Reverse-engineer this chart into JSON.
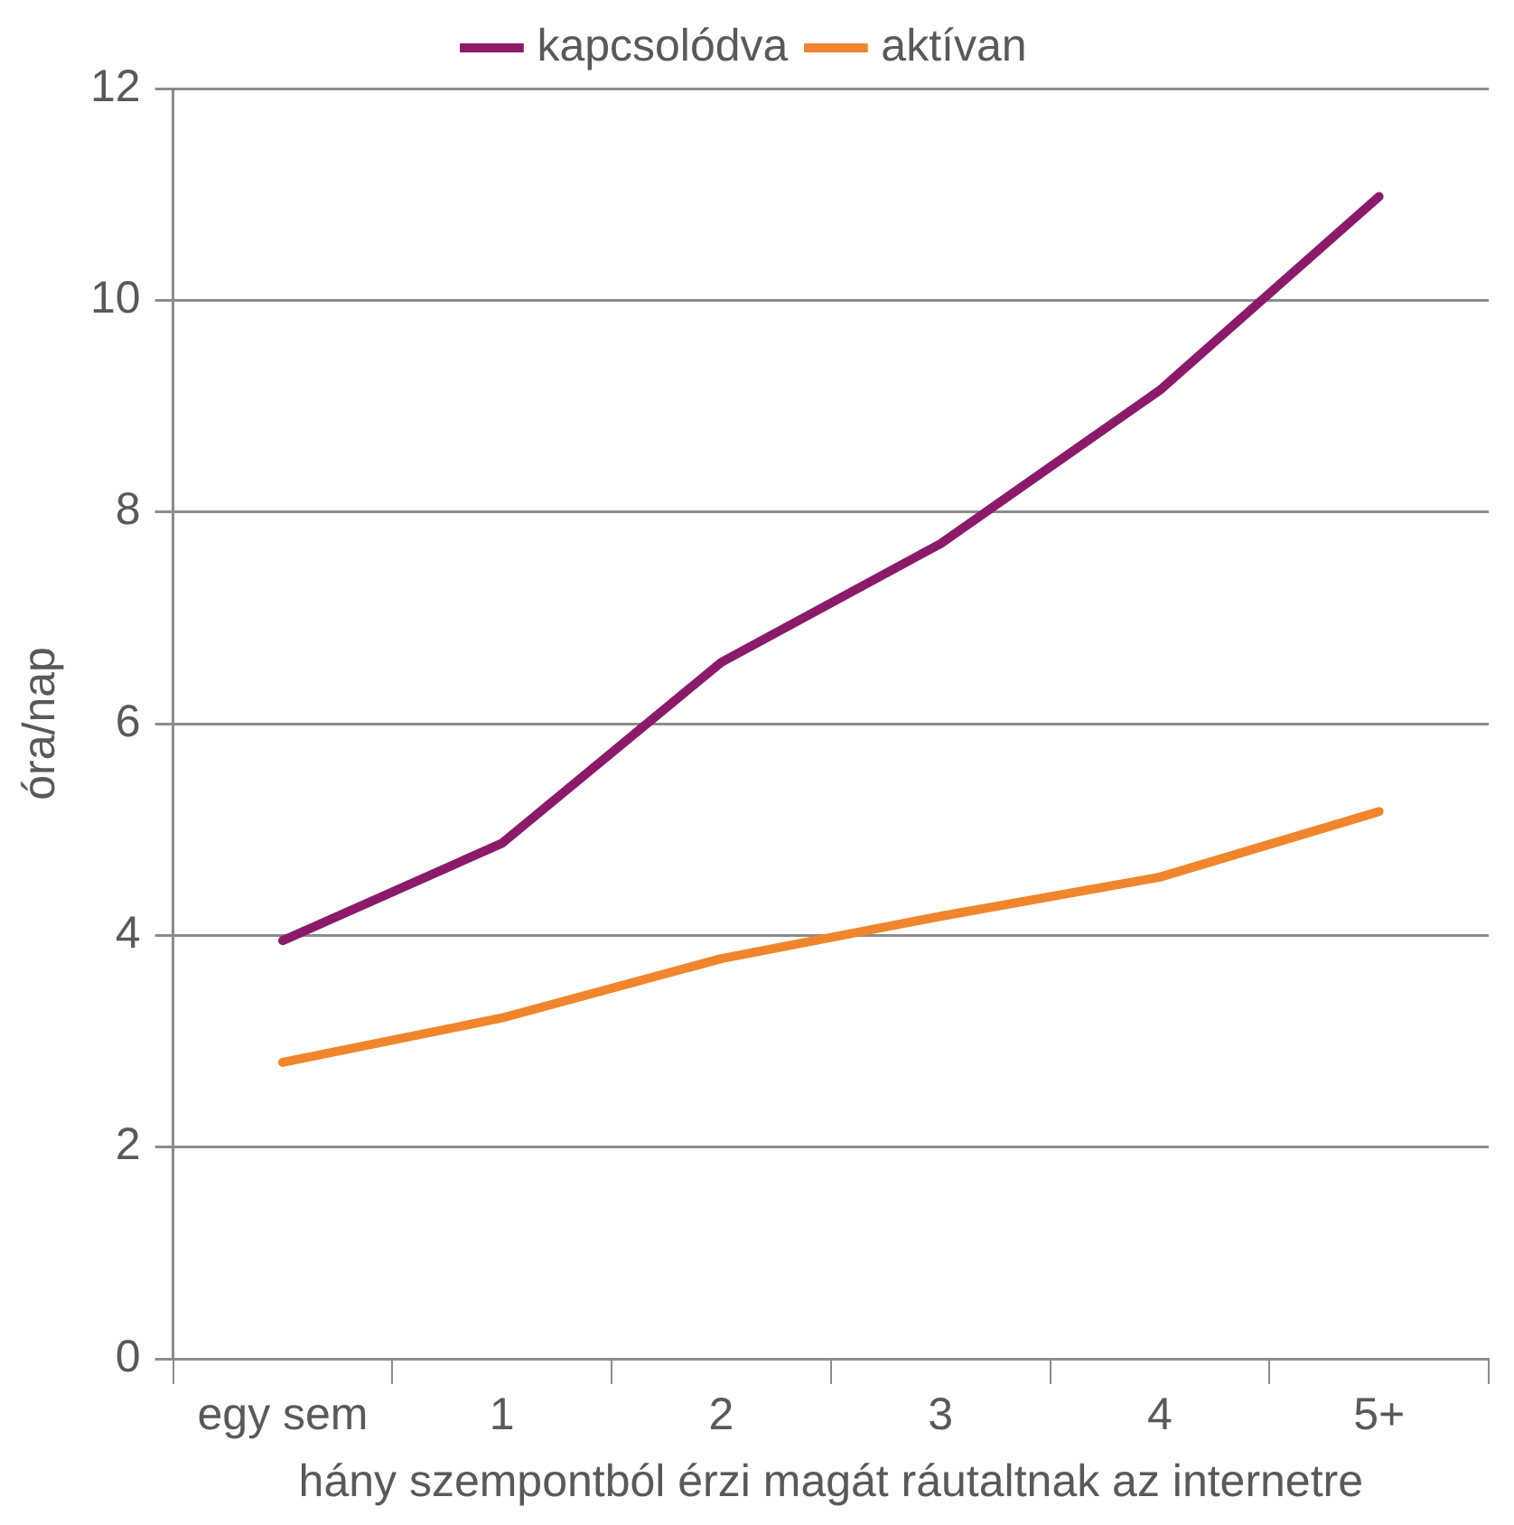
{
  "chart_data": {
    "type": "line",
    "xlabel": "hány szempontból érzi magát ráutaltnak az internetre",
    "ylabel": "óra/nap",
    "categories": [
      "egy sem",
      "1",
      "2",
      "3",
      "4",
      "5+"
    ],
    "series": [
      {
        "name": "kapcsolódva",
        "color": "#8b1a6b",
        "values": [
          3.95,
          4.87,
          6.58,
          7.7,
          9.15,
          10.98
        ]
      },
      {
        "name": "aktívan",
        "color": "#f0852d",
        "values": [
          2.8,
          3.22,
          3.78,
          4.18,
          4.55,
          5.17
        ]
      }
    ],
    "ylim": [
      0,
      12
    ],
    "yticks": [
      0,
      2,
      4,
      6,
      8,
      10,
      12
    ],
    "grid": "y",
    "legend": "top",
    "marker": "none",
    "line_style": "solid"
  }
}
